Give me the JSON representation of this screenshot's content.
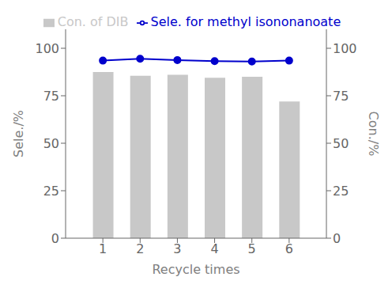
{
  "chart_data": {
    "type": "combo",
    "x": [
      1,
      2,
      3,
      4,
      5,
      6
    ],
    "xlim": [
      0,
      7
    ],
    "xticks": [
      1,
      2,
      3,
      4,
      5,
      6
    ],
    "xlabel": "Recycle times",
    "ylabel": "Sele./%",
    "y2label": "Con./%",
    "ylim": [
      0,
      110
    ],
    "yticks": [
      0,
      25,
      50,
      75,
      100
    ],
    "y2lim": [
      0,
      110
    ],
    "y2ticks": [
      0,
      25,
      50,
      75,
      100
    ],
    "legend": "top",
    "series": [
      {
        "name": "Con. of DIB",
        "type": "bar",
        "color": "#c8c8c8",
        "values": [
          87.5,
          85.5,
          86.0,
          84.5,
          85.0,
          72.0
        ]
      },
      {
        "name": "Sele. for methyl isononanoate",
        "type": "line",
        "color": "#0000cc",
        "marker": "circle",
        "axis": "y2",
        "values": [
          93.5,
          94.5,
          93.8,
          93.2,
          93.0,
          93.5
        ]
      }
    ]
  }
}
